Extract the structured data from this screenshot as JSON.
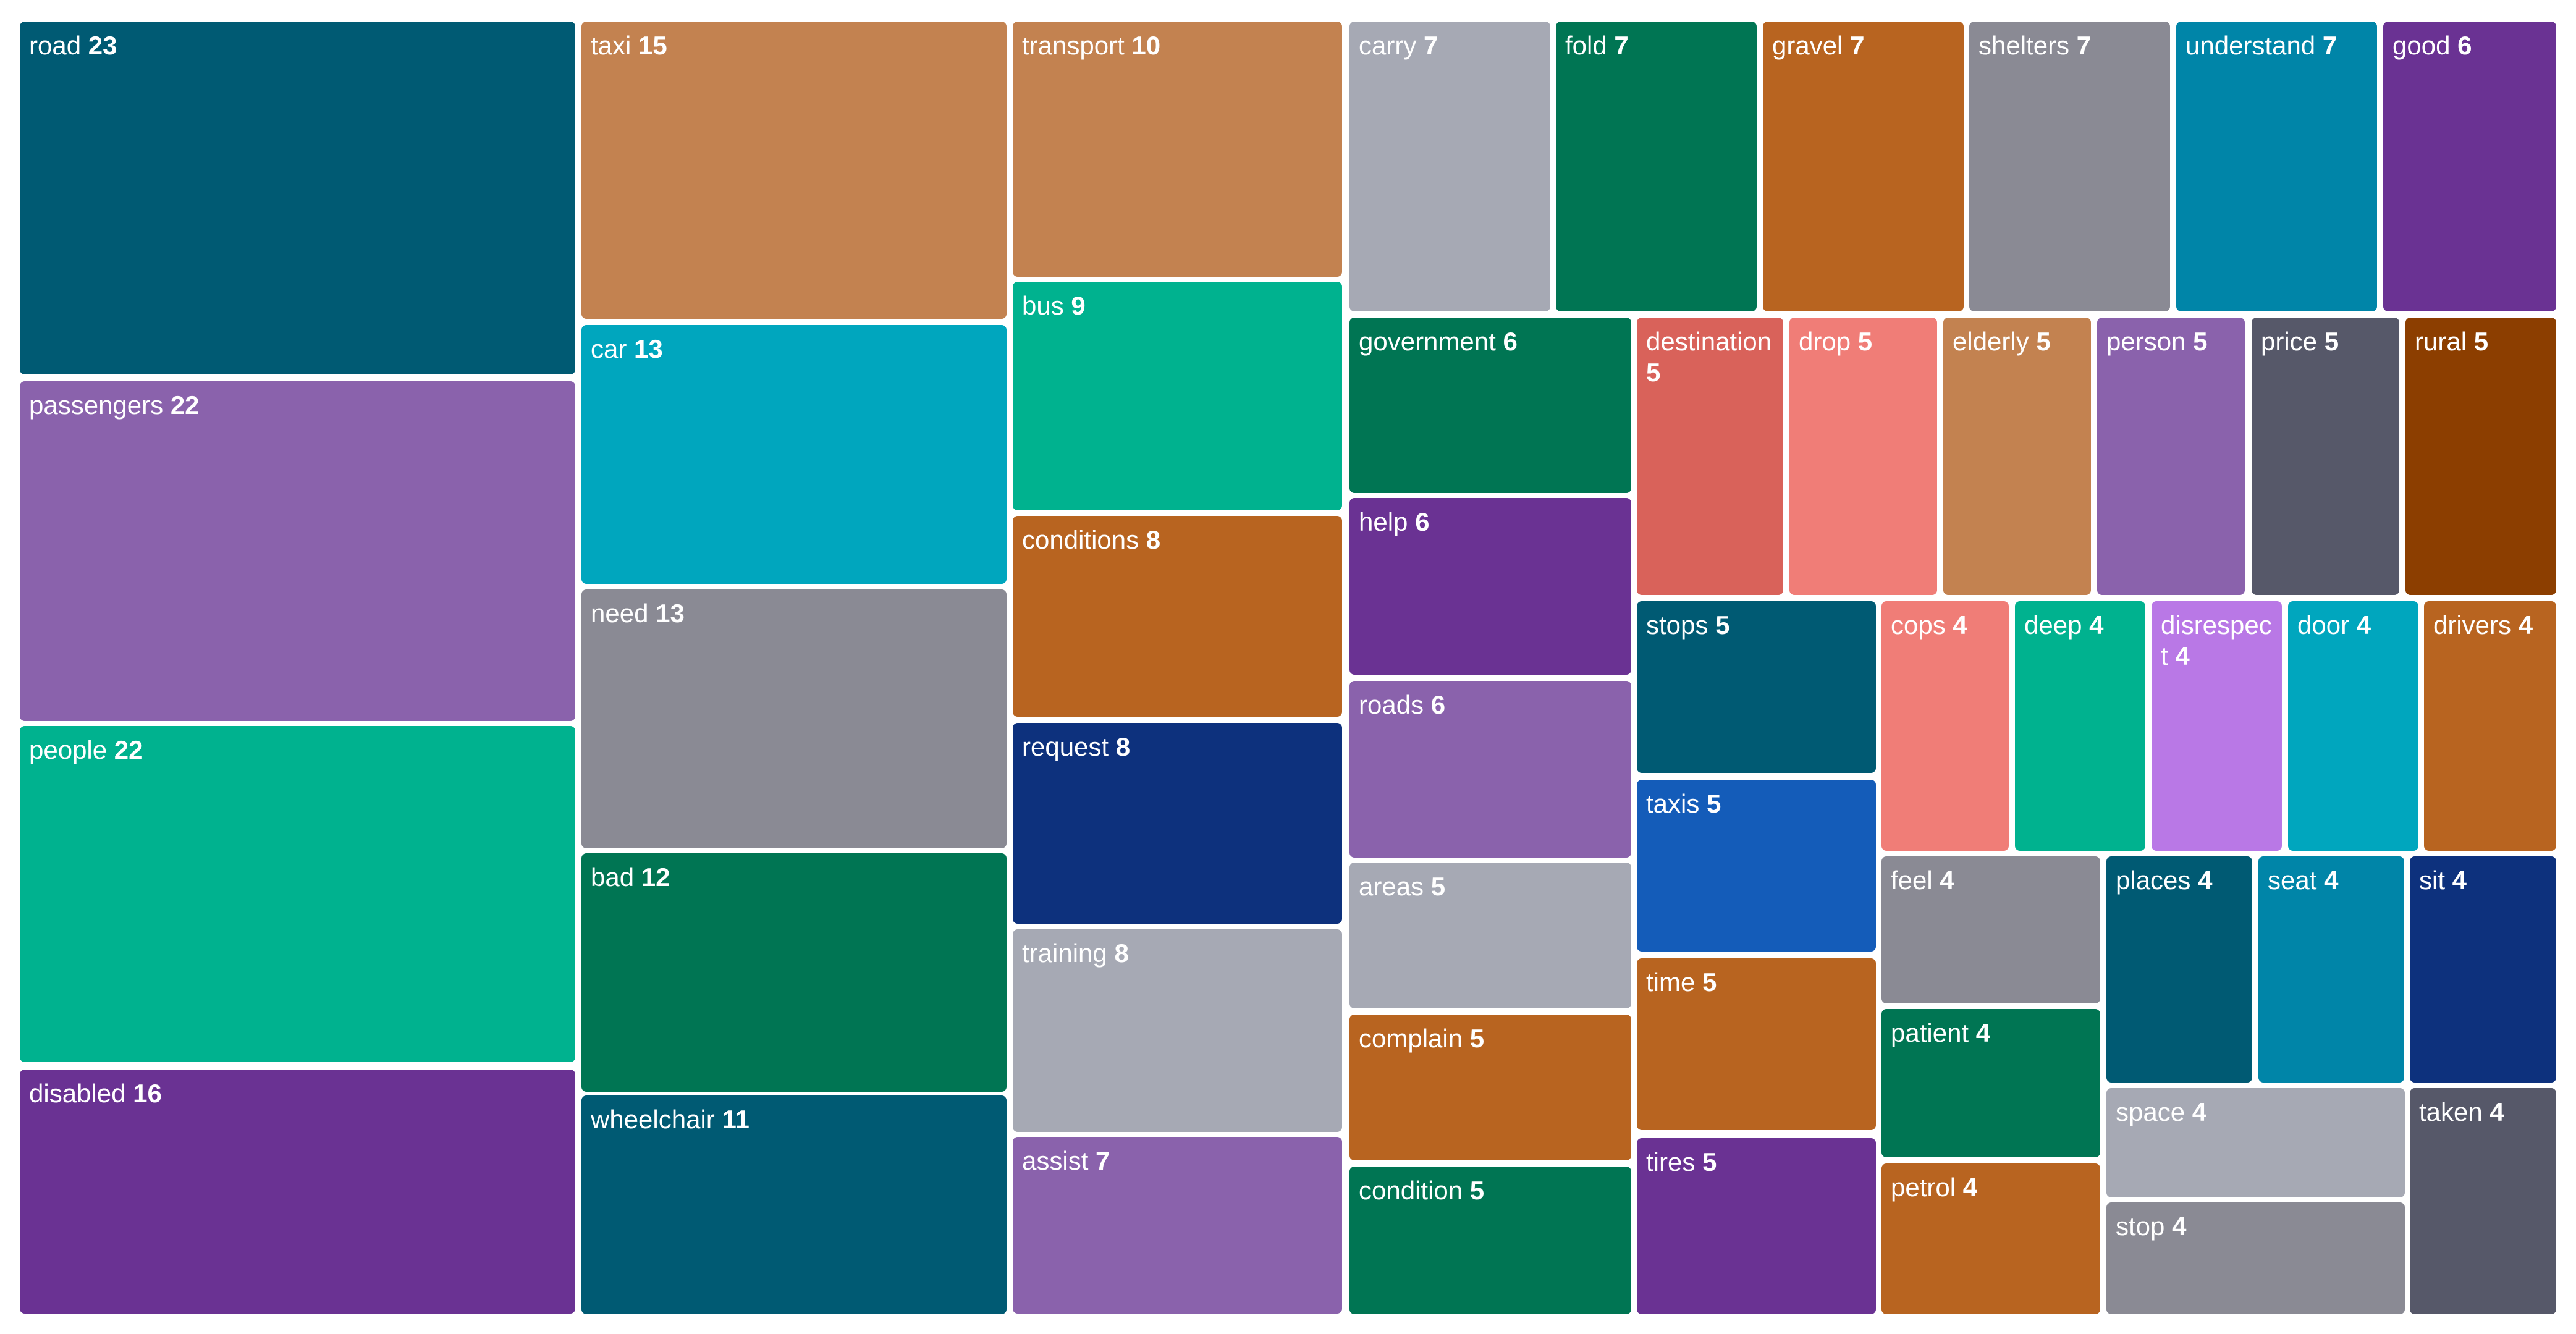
{
  "chart_data": {
    "type": "treemap",
    "items": [
      {
        "label": "road",
        "value": 23,
        "color": "#005a73"
      },
      {
        "label": "passengers",
        "value": 22,
        "color": "#8a62ac"
      },
      {
        "label": "people",
        "value": 22,
        "color": "#00b28f"
      },
      {
        "label": "disabled",
        "value": 16,
        "color": "#6a3293"
      },
      {
        "label": "taxi",
        "value": 15,
        "color": "#c38250"
      },
      {
        "label": "car",
        "value": 13,
        "color": "#00a6be"
      },
      {
        "label": "need",
        "value": 13,
        "color": "#8a8a94"
      },
      {
        "label": "bad",
        "value": 12,
        "color": "#007553"
      },
      {
        "label": "wheelchair",
        "value": 11,
        "color": "#005a73"
      },
      {
        "label": "transport",
        "value": 10,
        "color": "#c38250"
      },
      {
        "label": "bus",
        "value": 9,
        "color": "#00b28f"
      },
      {
        "label": "conditions",
        "value": 8,
        "color": "#b86420"
      },
      {
        "label": "request",
        "value": 8,
        "color": "#0d317d"
      },
      {
        "label": "training",
        "value": 8,
        "color": "#a6a9b4"
      },
      {
        "label": "assist",
        "value": 7,
        "color": "#8a62ac"
      },
      {
        "label": "carry",
        "value": 7,
        "color": "#a6a9b4"
      },
      {
        "label": "fold",
        "value": 7,
        "color": "#007553"
      },
      {
        "label": "gravel",
        "value": 7,
        "color": "#b86420"
      },
      {
        "label": "shelters",
        "value": 7,
        "color": "#8a8a94"
      },
      {
        "label": "understand",
        "value": 7,
        "color": "#0085a8"
      },
      {
        "label": "good",
        "value": 6,
        "color": "#6a3293"
      },
      {
        "label": "government",
        "value": 6,
        "color": "#007553"
      },
      {
        "label": "help",
        "value": 6,
        "color": "#6a3293"
      },
      {
        "label": "roads",
        "value": 6,
        "color": "#8a62ac"
      },
      {
        "label": "areas",
        "value": 5,
        "color": "#a6a9b4"
      },
      {
        "label": "complain",
        "value": 5,
        "color": "#b86420"
      },
      {
        "label": "condition",
        "value": 5,
        "color": "#007553"
      },
      {
        "label": "destination",
        "value": 5,
        "color": "#d9625a"
      },
      {
        "label": "drop",
        "value": 5,
        "color": "#f07d77"
      },
      {
        "label": "elderly",
        "value": 5,
        "color": "#c38250"
      },
      {
        "label": "person",
        "value": 5,
        "color": "#8a62ac"
      },
      {
        "label": "price",
        "value": 5,
        "color": "#565869"
      },
      {
        "label": "rural",
        "value": 5,
        "color": "#8c3e00"
      },
      {
        "label": "stops",
        "value": 5,
        "color": "#005a73"
      },
      {
        "label": "taxis",
        "value": 5,
        "color": "#145cb9"
      },
      {
        "label": "time",
        "value": 5,
        "color": "#b86420"
      },
      {
        "label": "tires",
        "value": 5,
        "color": "#6a3293"
      },
      {
        "label": "cops",
        "value": 4,
        "color": "#f07d77"
      },
      {
        "label": "deep",
        "value": 4,
        "color": "#00b28f"
      },
      {
        "label": "disrespect",
        "value": 4,
        "color": "#b978e6"
      },
      {
        "label": "door",
        "value": 4,
        "color": "#00a6be"
      },
      {
        "label": "drivers",
        "value": 4,
        "color": "#b86420"
      },
      {
        "label": "feel",
        "value": 4,
        "color": "#8a8a94"
      },
      {
        "label": "patient",
        "value": 4,
        "color": "#007553"
      },
      {
        "label": "petrol",
        "value": 4,
        "color": "#b86420"
      },
      {
        "label": "places",
        "value": 4,
        "color": "#005a73"
      },
      {
        "label": "seat",
        "value": 4,
        "color": "#0085a8"
      },
      {
        "label": "sit",
        "value": 4,
        "color": "#0d317d"
      },
      {
        "label": "space",
        "value": 4,
        "color": "#a6a9b4"
      },
      {
        "label": "stop",
        "value": 4,
        "color": "#8a8a94"
      },
      {
        "label": "taken",
        "value": 4,
        "color": "#565869"
      }
    ]
  }
}
